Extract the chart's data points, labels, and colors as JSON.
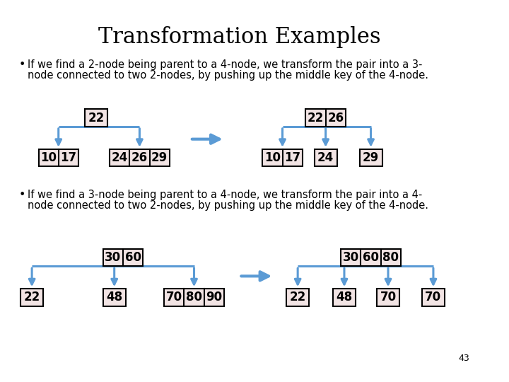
{
  "title": "Transformation Examples",
  "title_fontsize": 22,
  "bg_color": "#ffffff",
  "box_fill": "#f2e4e4",
  "box_edge": "#000000",
  "arrow_color": "#5b9bd5",
  "text_color": "#000000",
  "bullet1_line1": "If we find a 2-node being parent to a 4-node, we transform the pair into a 3-",
  "bullet1_line2": "node connected to two 2-nodes, by pushing up the middle key of the 4-node.",
  "bullet2_line1": "If we find a 3-node being parent to a 4-node, we transform the pair into a 4-",
  "bullet2_line2": "node connected to two 2-nodes, by pushing up the middle key of the 4-node.",
  "page_num": "43",
  "bullet_fontsize": 10.5
}
